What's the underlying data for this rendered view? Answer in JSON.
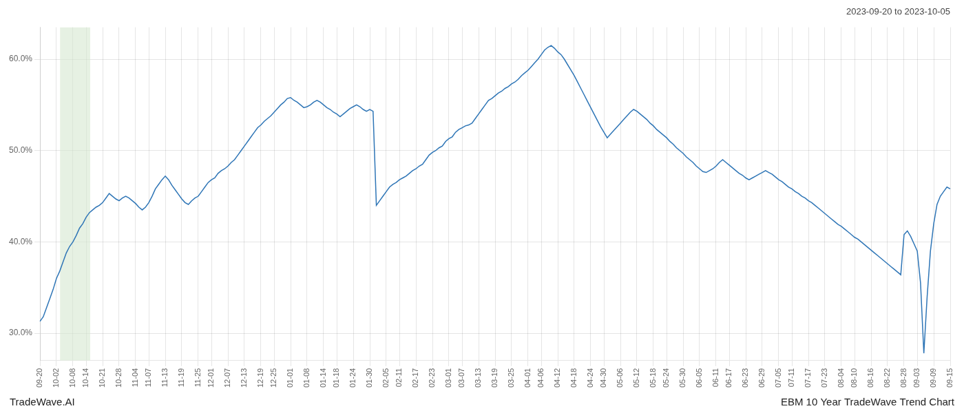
{
  "chart_data": {
    "type": "line",
    "title": "2023-09-20 to 2023-10-05",
    "annotations": [
      "TradeWave.AI",
      "EBM 10 Year TradeWave Trend Chart"
    ],
    "categories": [
      "09-20",
      null,
      null,
      null,
      null,
      "10-02",
      null,
      null,
      null,
      null,
      "10-08",
      null,
      null,
      null,
      "10-14",
      null,
      null,
      null,
      null,
      "10-21",
      null,
      null,
      null,
      null,
      "10-28",
      null,
      null,
      null,
      null,
      "11-04",
      null,
      null,
      null,
      "11-07",
      null,
      null,
      null,
      null,
      "11-13",
      null,
      null,
      null,
      null,
      "11-19",
      null,
      null,
      null,
      null,
      "11-25",
      null,
      null,
      null,
      "12-01",
      null,
      null,
      null,
      null,
      "12-07",
      null,
      null,
      null,
      null,
      "12-13",
      null,
      null,
      null,
      null,
      "12-19",
      null,
      null,
      null,
      "12-25",
      null,
      null,
      null,
      null,
      "01-01",
      null,
      null,
      null,
      null,
      "01-08",
      null,
      null,
      null,
      null,
      "01-14",
      null,
      null,
      null,
      "01-18",
      null,
      null,
      null,
      null,
      "01-24",
      null,
      null,
      null,
      null,
      "01-30",
      null,
      null,
      null,
      null,
      "02-05",
      null,
      null,
      null,
      "02-11",
      null,
      null,
      null,
      null,
      "02-17",
      null,
      null,
      null,
      null,
      "02-23",
      null,
      null,
      null,
      null,
      "03-01",
      null,
      null,
      null,
      "03-07",
      null,
      null,
      null,
      null,
      "03-13",
      null,
      null,
      null,
      null,
      "03-19",
      null,
      null,
      null,
      null,
      "03-25",
      null,
      null,
      null,
      null,
      "04-01",
      null,
      null,
      null,
      "04-06",
      null,
      null,
      null,
      null,
      "04-12",
      null,
      null,
      null,
      null,
      "04-18",
      null,
      null,
      null,
      null,
      "04-24",
      null,
      null,
      null,
      "04-30",
      null,
      null,
      null,
      null,
      "05-06",
      null,
      null,
      null,
      null,
      "05-12",
      null,
      null,
      null,
      null,
      "05-18",
      null,
      null,
      null,
      "05-24",
      null,
      null,
      null,
      null,
      "05-30",
      null,
      null,
      null,
      null,
      "06-05",
      null,
      null,
      null,
      null,
      "06-11",
      null,
      null,
      null,
      "06-17",
      null,
      null,
      null,
      null,
      "06-23",
      null,
      null,
      null,
      null,
      "06-29",
      null,
      null,
      null,
      null,
      "07-05",
      null,
      null,
      null,
      "07-11",
      null,
      null,
      null,
      null,
      "07-17",
      null,
      null,
      null,
      null,
      "07-23",
      null,
      null,
      null,
      null,
      "08-04",
      null,
      null,
      null,
      "08-10",
      null,
      null,
      null,
      null,
      "08-16",
      null,
      null,
      null,
      null,
      "08-22",
      null,
      null,
      null,
      null,
      "08-28",
      null,
      null,
      null,
      "09-03",
      null,
      null,
      null,
      null,
      "09-09",
      null,
      null,
      null,
      null,
      "09-15"
    ],
    "values": [
      0.313,
      0.318,
      0.328,
      0.338,
      0.348,
      0.36,
      0.368,
      0.378,
      0.388,
      0.395,
      0.4,
      0.407,
      0.415,
      0.42,
      0.427,
      0.432,
      0.435,
      0.438,
      0.44,
      0.443,
      0.448,
      0.453,
      0.45,
      0.447,
      0.445,
      0.448,
      0.45,
      0.448,
      0.445,
      0.442,
      0.438,
      0.435,
      0.438,
      0.443,
      0.45,
      0.458,
      0.463,
      0.468,
      0.472,
      0.468,
      0.462,
      0.457,
      0.452,
      0.447,
      0.443,
      0.441,
      0.445,
      0.448,
      0.45,
      0.455,
      0.46,
      0.465,
      0.468,
      0.47,
      0.475,
      0.478,
      0.48,
      0.483,
      0.487,
      0.49,
      0.495,
      0.5,
      0.505,
      0.51,
      0.515,
      0.52,
      0.525,
      0.528,
      0.532,
      0.535,
      0.538,
      0.542,
      0.546,
      0.55,
      0.553,
      0.557,
      0.558,
      0.555,
      0.553,
      0.55,
      0.547,
      0.548,
      0.55,
      0.553,
      0.555,
      0.553,
      0.55,
      0.547,
      0.545,
      0.542,
      0.54,
      0.537,
      0.54,
      0.543,
      0.546,
      0.548,
      0.55,
      0.548,
      0.545,
      0.543,
      0.545,
      0.543,
      0.44,
      0.445,
      0.45,
      0.455,
      0.46,
      0.463,
      0.465,
      0.468,
      0.47,
      0.472,
      0.475,
      0.478,
      0.48,
      0.483,
      0.485,
      0.49,
      0.495,
      0.498,
      0.5,
      0.503,
      0.505,
      0.51,
      0.513,
      0.515,
      0.52,
      0.523,
      0.525,
      0.527,
      0.528,
      0.53,
      0.535,
      0.54,
      0.545,
      0.55,
      0.555,
      0.557,
      0.56,
      0.563,
      0.565,
      0.568,
      0.57,
      0.573,
      0.575,
      0.578,
      0.582,
      0.585,
      0.588,
      0.592,
      0.596,
      0.6,
      0.605,
      0.61,
      0.613,
      0.615,
      0.612,
      0.608,
      0.605,
      0.6,
      0.594,
      0.588,
      0.582,
      0.575,
      0.568,
      0.561,
      0.554,
      0.547,
      0.54,
      0.533,
      0.526,
      0.52,
      0.514,
      0.518,
      0.522,
      0.526,
      0.53,
      0.534,
      0.538,
      0.542,
      0.545,
      0.543,
      0.54,
      0.537,
      0.534,
      0.53,
      0.527,
      0.523,
      0.52,
      0.517,
      0.514,
      0.51,
      0.507,
      0.503,
      0.5,
      0.497,
      0.493,
      0.49,
      0.487,
      0.483,
      0.48,
      0.477,
      0.476,
      0.478,
      0.48,
      0.483,
      0.487,
      0.49,
      0.487,
      0.484,
      0.481,
      0.478,
      0.475,
      0.473,
      0.47,
      0.468,
      0.47,
      0.472,
      0.474,
      0.476,
      0.478,
      0.476,
      0.474,
      0.471,
      0.468,
      0.466,
      0.463,
      0.46,
      0.458,
      0.455,
      0.453,
      0.45,
      0.448,
      0.445,
      0.443,
      0.44,
      0.437,
      0.434,
      0.431,
      0.428,
      0.425,
      0.422,
      0.419,
      0.417,
      0.414,
      0.411,
      0.408,
      0.405,
      0.403,
      0.4,
      0.397,
      0.394,
      0.391,
      0.388,
      0.385,
      0.382,
      0.379,
      0.376,
      0.373,
      0.37,
      0.367,
      0.364,
      0.408,
      0.412,
      0.406,
      0.398,
      0.39,
      0.355,
      0.278,
      0.34,
      0.39,
      0.42,
      0.441,
      0.45,
      0.455,
      0.46,
      0.458
    ],
    "color": "#2e75b6",
    "ylim": [
      0.27,
      0.635
    ],
    "yticks": [
      {
        "value": 0.3,
        "label": "30.0%"
      },
      {
        "value": 0.4,
        "label": "40.0%"
      },
      {
        "value": 0.5,
        "label": "50.0%"
      },
      {
        "value": 0.6,
        "label": "60.0%"
      }
    ],
    "grid": true,
    "highlight": {
      "start": 0.022,
      "end": 0.055,
      "color": "#d6e8d0"
    }
  }
}
